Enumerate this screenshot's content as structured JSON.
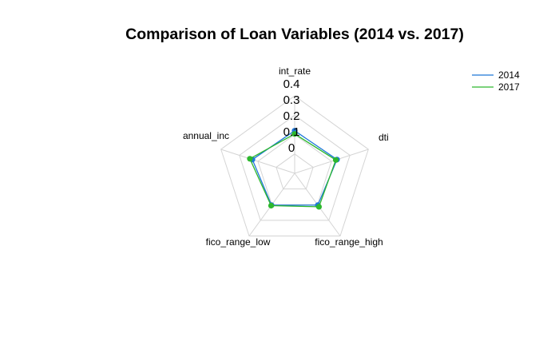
{
  "chart_data": {
    "type": "radar",
    "title": "Comparison of Loan Variables (2014 vs. 2017)",
    "axes": [
      "int_rate",
      "dti",
      "fico_range_high",
      "fico_range_low",
      "annual_inc"
    ],
    "rlim": [
      -0.2,
      0.4
    ],
    "ticks": [
      "0",
      "0.1",
      "0.2",
      "0.3",
      "0.4"
    ],
    "grid": true,
    "legend_position": "top-right",
    "series": [
      {
        "name": "2014",
        "color": "#1f78d8",
        "values": [
          0.13,
          0.145,
          0.105,
          0.105,
          0.145
        ]
      },
      {
        "name": "2017",
        "color": "#2db82d",
        "values": [
          0.105,
          0.135,
          0.12,
          0.11,
          0.165
        ]
      }
    ]
  }
}
